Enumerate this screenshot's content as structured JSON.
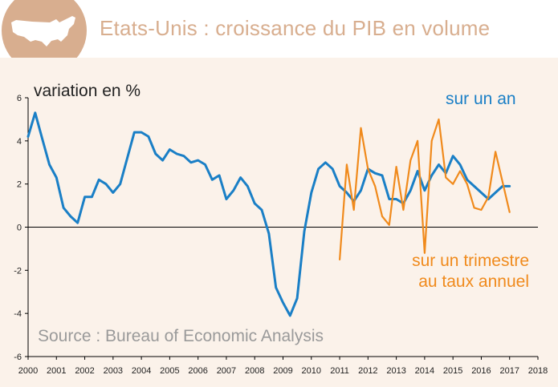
{
  "title": "Etats-Unis : croissance du PIB en volume",
  "source": "Source : Bureau of Economic Analysis",
  "icon": "usa-map-icon",
  "colors": {
    "annual": "#1a7fc6",
    "quarterly": "#f08a1c",
    "title": "#d8ae8f",
    "plot_bg": "#fbf2ea",
    "axis": "#000000"
  },
  "chart_data": {
    "type": "line",
    "ylabel": "variation en %",
    "xlabel": "",
    "ylim": [
      -6,
      6
    ],
    "xlim": [
      2000,
      2018
    ],
    "y_ticks": [
      "6",
      "4",
      "2",
      "0",
      "-2",
      "-4",
      "-6"
    ],
    "y_tick_values": [
      6,
      4,
      2,
      0,
      -2,
      -4,
      -6
    ],
    "x_ticks": [
      "2000",
      "2001",
      "2002",
      "2003",
      "2004",
      "2005",
      "2006",
      "2007",
      "2008",
      "2009",
      "2010",
      "2011",
      "2012",
      "2013",
      "2014",
      "2015",
      "2016",
      "2017",
      "2018"
    ],
    "x_tick_values": [
      2000,
      2001,
      2002,
      2003,
      2004,
      2005,
      2006,
      2007,
      2008,
      2009,
      2010,
      2011,
      2012,
      2013,
      2014,
      2015,
      2016,
      2017,
      2018
    ],
    "series": [
      {
        "name": "sur un an",
        "color": "#1a7fc6",
        "points": [
          [
            2000.0,
            4.2
          ],
          [
            2000.25,
            5.3
          ],
          [
            2000.5,
            4.1
          ],
          [
            2000.75,
            2.9
          ],
          [
            2001.0,
            2.3
          ],
          [
            2001.25,
            0.9
          ],
          [
            2001.5,
            0.5
          ],
          [
            2001.75,
            0.2
          ],
          [
            2002.0,
            1.4
          ],
          [
            2002.25,
            1.4
          ],
          [
            2002.5,
            2.2
          ],
          [
            2002.75,
            2.0
          ],
          [
            2003.0,
            1.6
          ],
          [
            2003.25,
            2.0
          ],
          [
            2003.5,
            3.2
          ],
          [
            2003.75,
            4.4
          ],
          [
            2004.0,
            4.4
          ],
          [
            2004.25,
            4.2
          ],
          [
            2004.5,
            3.4
          ],
          [
            2004.75,
            3.1
          ],
          [
            2005.0,
            3.6
          ],
          [
            2005.25,
            3.4
          ],
          [
            2005.5,
            3.3
          ],
          [
            2005.75,
            3.0
          ],
          [
            2006.0,
            3.1
          ],
          [
            2006.25,
            2.9
          ],
          [
            2006.5,
            2.2
          ],
          [
            2006.75,
            2.4
          ],
          [
            2007.0,
            1.3
          ],
          [
            2007.25,
            1.7
          ],
          [
            2007.5,
            2.3
          ],
          [
            2007.75,
            1.9
          ],
          [
            2008.0,
            1.1
          ],
          [
            2008.25,
            0.8
          ],
          [
            2008.5,
            -0.3
          ],
          [
            2008.75,
            -2.8
          ],
          [
            2009.0,
            -3.5
          ],
          [
            2009.25,
            -4.1
          ],
          [
            2009.5,
            -3.3
          ],
          [
            2009.75,
            -0.2
          ],
          [
            2010.0,
            1.6
          ],
          [
            2010.25,
            2.7
          ],
          [
            2010.5,
            3.0
          ],
          [
            2010.75,
            2.7
          ],
          [
            2011.0,
            1.9
          ],
          [
            2011.25,
            1.6
          ],
          [
            2011.5,
            1.2
          ],
          [
            2011.75,
            1.7
          ],
          [
            2012.0,
            2.7
          ],
          [
            2012.25,
            2.5
          ],
          [
            2012.5,
            2.4
          ],
          [
            2012.75,
            1.3
          ],
          [
            2013.0,
            1.3
          ],
          [
            2013.25,
            1.1
          ],
          [
            2013.5,
            1.7
          ],
          [
            2013.75,
            2.6
          ],
          [
            2014.0,
            1.7
          ],
          [
            2014.25,
            2.4
          ],
          [
            2014.5,
            2.9
          ],
          [
            2014.75,
            2.5
          ],
          [
            2015.0,
            3.3
          ],
          [
            2015.25,
            2.9
          ],
          [
            2015.5,
            2.2
          ],
          [
            2015.75,
            1.9
          ],
          [
            2016.0,
            1.6
          ],
          [
            2016.25,
            1.3
          ],
          [
            2016.5,
            1.6
          ],
          [
            2016.75,
            1.9
          ],
          [
            2017.0,
            1.9
          ]
        ]
      },
      {
        "name": "sur un trimestre au taux annuel",
        "color": "#f08a1c",
        "points": [
          [
            2011.0,
            -1.5
          ],
          [
            2011.25,
            2.9
          ],
          [
            2011.5,
            0.8
          ],
          [
            2011.75,
            4.6
          ],
          [
            2012.0,
            2.7
          ],
          [
            2012.25,
            1.9
          ],
          [
            2012.5,
            0.5
          ],
          [
            2012.75,
            0.1
          ],
          [
            2013.0,
            2.8
          ],
          [
            2013.25,
            0.8
          ],
          [
            2013.5,
            3.1
          ],
          [
            2013.75,
            4.0
          ],
          [
            2014.0,
            -1.2
          ],
          [
            2014.25,
            4.0
          ],
          [
            2014.5,
            5.0
          ],
          [
            2014.75,
            2.3
          ],
          [
            2015.0,
            2.0
          ],
          [
            2015.25,
            2.6
          ],
          [
            2015.5,
            2.0
          ],
          [
            2015.75,
            0.9
          ],
          [
            2016.0,
            0.8
          ],
          [
            2016.25,
            1.4
          ],
          [
            2016.5,
            3.5
          ],
          [
            2016.75,
            2.1
          ],
          [
            2017.0,
            0.7
          ]
        ]
      }
    ]
  },
  "labels": {
    "annual": "sur un an",
    "quarterly_line1": "sur un trimestre",
    "quarterly_line2": "au taux annuel"
  }
}
